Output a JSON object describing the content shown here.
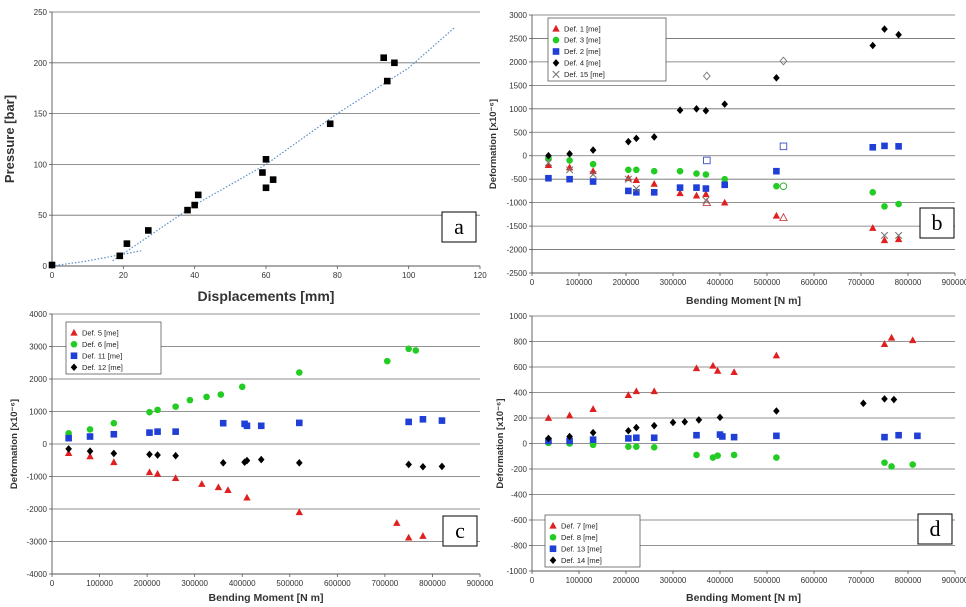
{
  "chart_data": [
    {
      "type": "scatter",
      "panel_label": "a",
      "xlabel": "Displacements [mm]",
      "ylabel": "Pressure [bar]",
      "xlim": [
        0,
        120
      ],
      "ylim": [
        0,
        250
      ],
      "xticks": [
        0,
        20,
        40,
        60,
        80,
        100,
        120
      ],
      "yticks": [
        0,
        50,
        100,
        150,
        200,
        250
      ],
      "grid": "horizontal",
      "series": [
        {
          "color": "#000000",
          "marker": "square",
          "points": [
            [
              0,
              1
            ],
            [
              19,
              10
            ],
            [
              21,
              22
            ],
            [
              27,
              35
            ],
            [
              38,
              55
            ],
            [
              40,
              60
            ],
            [
              41,
              70
            ],
            [
              59,
              92
            ],
            [
              60,
              77
            ],
            [
              60,
              105
            ],
            [
              62,
              85
            ],
            [
              78,
              140
            ],
            [
              93,
              205
            ],
            [
              94,
              182
            ],
            [
              96,
              200
            ]
          ]
        }
      ],
      "trendlines": [
        {
          "color": "#5b8fc9",
          "style": "dotted",
          "points": [
            [
              0,
              0
            ],
            [
              10,
              5
            ],
            [
              25,
              15
            ]
          ]
        },
        {
          "color": "#5b8fc9",
          "style": "dotted",
          "points": [
            [
              17,
              5
            ],
            [
              40,
              60
            ],
            [
              60,
              100
            ],
            [
              80,
              150
            ],
            [
              100,
              195
            ],
            [
              113,
              235
            ]
          ]
        }
      ]
    },
    {
      "type": "scatter",
      "panel_label": "b",
      "xlabel": "Bending Moment  [N m]",
      "ylabel": "Deformation  [x10⁻⁶]",
      "xlim": [
        0,
        900000
      ],
      "ylim": [
        -2500,
        3000
      ],
      "xticks": [
        0,
        100000,
        200000,
        300000,
        400000,
        500000,
        600000,
        700000,
        800000,
        900000
      ],
      "yticks": [
        -2500,
        -2000,
        -1500,
        -1000,
        -500,
        0,
        500,
        1000,
        1500,
        2000,
        2500,
        3000
      ],
      "grid": "horizontal",
      "legend": "top-left",
      "series": [
        {
          "name": "Def. 1 [me]",
          "color": "#e02020",
          "marker": "triangle",
          "points": [
            [
              35000,
              -200
            ],
            [
              80000,
              -250
            ],
            [
              130000,
              -330
            ],
            [
              205000,
              -480
            ],
            [
              222000,
              -520
            ],
            [
              260000,
              -600
            ],
            [
              315000,
              -800
            ],
            [
              350000,
              -850
            ],
            [
              370000,
              -820
            ],
            [
              410000,
              -1000
            ],
            [
              520000,
              -1280
            ],
            [
              725000,
              -1540
            ],
            [
              750000,
              -1800
            ],
            [
              780000,
              -1780
            ]
          ]
        },
        {
          "name": "Def. 3 [me]",
          "color": "#22cc22",
          "marker": "circle",
          "points": [
            [
              35000,
              -50
            ],
            [
              80000,
              -100
            ],
            [
              130000,
              -180
            ],
            [
              205000,
              -300
            ],
            [
              222000,
              -300
            ],
            [
              260000,
              -330
            ],
            [
              315000,
              -330
            ],
            [
              350000,
              -380
            ],
            [
              370000,
              -400
            ],
            [
              410000,
              -500
            ],
            [
              520000,
              -650
            ],
            [
              725000,
              -780
            ],
            [
              750000,
              -1080
            ],
            [
              780000,
              -1030
            ]
          ]
        },
        {
          "name": "Def. 2 [me]",
          "color": "#1f3fd6",
          "marker": "square",
          "points": [
            [
              35000,
              -480
            ],
            [
              80000,
              -500
            ],
            [
              130000,
              -550
            ],
            [
              205000,
              -750
            ],
            [
              222000,
              -780
            ],
            [
              260000,
              -780
            ],
            [
              315000,
              -680
            ],
            [
              350000,
              -680
            ],
            [
              370000,
              -700
            ],
            [
              410000,
              -620
            ],
            [
              520000,
              -330
            ],
            [
              725000,
              180
            ],
            [
              750000,
              210
            ],
            [
              780000,
              200
            ]
          ]
        },
        {
          "name": "Def. 4 [me]",
          "color": "#000000",
          "marker": "diamond",
          "points": [
            [
              35000,
              0
            ],
            [
              80000,
              40
            ],
            [
              130000,
              120
            ],
            [
              205000,
              300
            ],
            [
              222000,
              370
            ],
            [
              260000,
              400
            ],
            [
              315000,
              970
            ],
            [
              350000,
              1000
            ],
            [
              370000,
              960
            ],
            [
              410000,
              1100
            ],
            [
              520000,
              1660
            ],
            [
              725000,
              2350
            ],
            [
              750000,
              2700
            ],
            [
              780000,
              2580
            ]
          ]
        },
        {
          "name": "Def. 15 [me]",
          "color": "#777777",
          "marker": "x",
          "points": [
            [
              35000,
              -150
            ],
            [
              80000,
              -300
            ],
            [
              130000,
              -400
            ],
            [
              205000,
              -500
            ],
            [
              222000,
              -700
            ],
            [
              370000,
              -950
            ],
            [
              750000,
              -1700
            ],
            [
              780000,
              -1700
            ]
          ]
        }
      ],
      "hollow_points": [
        {
          "color": "#777777",
          "marker": "diamond",
          "x": 372000,
          "y": 1700
        },
        {
          "color": "#777777",
          "marker": "diamond",
          "x": 535000,
          "y": 2020
        },
        {
          "color": "#3a4fcc",
          "marker": "square",
          "x": 372000,
          "y": -100
        },
        {
          "color": "#3a4fcc",
          "marker": "square",
          "x": 535000,
          "y": 200
        },
        {
          "color": "#22aa22",
          "marker": "circle",
          "x": 535000,
          "y": -650
        },
        {
          "color": "#cc4444",
          "marker": "triangle",
          "x": 372000,
          "y": -1000
        },
        {
          "color": "#cc4444",
          "marker": "triangle",
          "x": 535000,
          "y": -1320
        }
      ]
    },
    {
      "type": "scatter",
      "panel_label": "c",
      "xlabel": "Bending Moment  [N m]",
      "ylabel": "Deformation  [x10⁻⁶]",
      "xlim": [
        0,
        900000
      ],
      "ylim": [
        -4000,
        4000
      ],
      "xticks": [
        0,
        100000,
        200000,
        300000,
        400000,
        500000,
        600000,
        700000,
        800000,
        900000
      ],
      "yticks": [
        -4000,
        -3000,
        -2000,
        -1000,
        0,
        1000,
        2000,
        3000,
        4000
      ],
      "grid": "horizontal",
      "legend": "top-left",
      "series": [
        {
          "name": "Def. 5 [me]",
          "color": "#e02020",
          "marker": "triangle",
          "points": [
            [
              35000,
              -280
            ],
            [
              80000,
              -380
            ],
            [
              130000,
              -560
            ],
            [
              205000,
              -870
            ],
            [
              222000,
              -920
            ],
            [
              260000,
              -1050
            ],
            [
              315000,
              -1230
            ],
            [
              350000,
              -1330
            ],
            [
              370000,
              -1420
            ],
            [
              410000,
              -1650
            ],
            [
              520000,
              -2100
            ],
            [
              725000,
              -2430
            ],
            [
              750000,
              -2880
            ],
            [
              780000,
              -2830
            ]
          ]
        },
        {
          "name": "Def. 6 [me]",
          "color": "#22cc22",
          "marker": "circle",
          "points": [
            [
              35000,
              330
            ],
            [
              80000,
              450
            ],
            [
              130000,
              640
            ],
            [
              205000,
              980
            ],
            [
              222000,
              1050
            ],
            [
              260000,
              1150
            ],
            [
              290000,
              1350
            ],
            [
              325000,
              1450
            ],
            [
              355000,
              1520
            ],
            [
              400000,
              1760
            ],
            [
              520000,
              2200
            ],
            [
              705000,
              2550
            ],
            [
              750000,
              2930
            ],
            [
              765000,
              2880
            ]
          ]
        },
        {
          "name": "Def. 11 [me]",
          "color": "#1f3fd6",
          "marker": "square",
          "points": [
            [
              35000,
              180
            ],
            [
              80000,
              230
            ],
            [
              130000,
              300
            ],
            [
              205000,
              350
            ],
            [
              222000,
              380
            ],
            [
              260000,
              380
            ],
            [
              360000,
              640
            ],
            [
              405000,
              620
            ],
            [
              410000,
              560
            ],
            [
              440000,
              560
            ],
            [
              520000,
              650
            ],
            [
              750000,
              680
            ],
            [
              780000,
              760
            ],
            [
              820000,
              720
            ]
          ]
        },
        {
          "name": "Def. 12 [me]",
          "color": "#000000",
          "marker": "diamond",
          "points": [
            [
              35000,
              -150
            ],
            [
              80000,
              -220
            ],
            [
              130000,
              -290
            ],
            [
              205000,
              -320
            ],
            [
              222000,
              -340
            ],
            [
              260000,
              -360
            ],
            [
              360000,
              -580
            ],
            [
              405000,
              -560
            ],
            [
              410000,
              -510
            ],
            [
              440000,
              -480
            ],
            [
              520000,
              -580
            ],
            [
              750000,
              -630
            ],
            [
              780000,
              -700
            ],
            [
              820000,
              -690
            ]
          ]
        }
      ]
    },
    {
      "type": "scatter",
      "panel_label": "d",
      "xlabel": "Bending Moment  [N m]",
      "ylabel": "Deformation  [x10⁻⁶]",
      "xlim": [
        0,
        900000
      ],
      "ylim": [
        -1000,
        1000
      ],
      "xticks": [
        0,
        100000,
        200000,
        300000,
        400000,
        500000,
        600000,
        700000,
        800000,
        900000
      ],
      "yticks": [
        -1000,
        -800,
        -600,
        -400,
        -200,
        0,
        200,
        400,
        600,
        800,
        1000
      ],
      "grid": "horizontal",
      "legend": "bottom-left",
      "series": [
        {
          "name": "Def. 7 [me]",
          "color": "#e02020",
          "marker": "triangle",
          "points": [
            [
              35000,
              200
            ],
            [
              80000,
              220
            ],
            [
              130000,
              270
            ],
            [
              205000,
              380
            ],
            [
              222000,
              410
            ],
            [
              260000,
              410
            ],
            [
              350000,
              590
            ],
            [
              385000,
              610
            ],
            [
              395000,
              570
            ],
            [
              430000,
              560
            ],
            [
              520000,
              690
            ],
            [
              750000,
              780
            ],
            [
              765000,
              830
            ],
            [
              810000,
              810
            ]
          ]
        },
        {
          "name": "Def. 8 [me]",
          "color": "#22cc22",
          "marker": "circle",
          "points": [
            [
              35000,
              5
            ],
            [
              80000,
              0
            ],
            [
              130000,
              -10
            ],
            [
              205000,
              -25
            ],
            [
              222000,
              -25
            ],
            [
              260000,
              -30
            ],
            [
              350000,
              -90
            ],
            [
              385000,
              -110
            ],
            [
              395000,
              -95
            ],
            [
              430000,
              -90
            ],
            [
              520000,
              -110
            ],
            [
              750000,
              -150
            ],
            [
              765000,
              -180
            ],
            [
              810000,
              -165
            ]
          ]
        },
        {
          "name": "Def. 13 [me]",
          "color": "#1f3fd6",
          "marker": "square",
          "points": [
            [
              35000,
              20
            ],
            [
              80000,
              20
            ],
            [
              130000,
              30
            ],
            [
              205000,
              40
            ],
            [
              222000,
              45
            ],
            [
              260000,
              45
            ],
            [
              350000,
              65
            ],
            [
              400000,
              70
            ],
            [
              405000,
              55
            ],
            [
              430000,
              50
            ],
            [
              520000,
              60
            ],
            [
              750000,
              50
            ],
            [
              780000,
              65
            ],
            [
              820000,
              60
            ]
          ]
        },
        {
          "name": "Def. 14 [me]",
          "color": "#000000",
          "marker": "diamond",
          "points": [
            [
              35000,
              40
            ],
            [
              80000,
              55
            ],
            [
              130000,
              85
            ],
            [
              205000,
              100
            ],
            [
              222000,
              125
            ],
            [
              260000,
              140
            ],
            [
              300000,
              165
            ],
            [
              325000,
              170
            ],
            [
              355000,
              185
            ],
            [
              400000,
              205
            ],
            [
              520000,
              255
            ],
            [
              705000,
              315
            ],
            [
              750000,
              350
            ],
            [
              770000,
              345
            ]
          ]
        }
      ]
    }
  ]
}
